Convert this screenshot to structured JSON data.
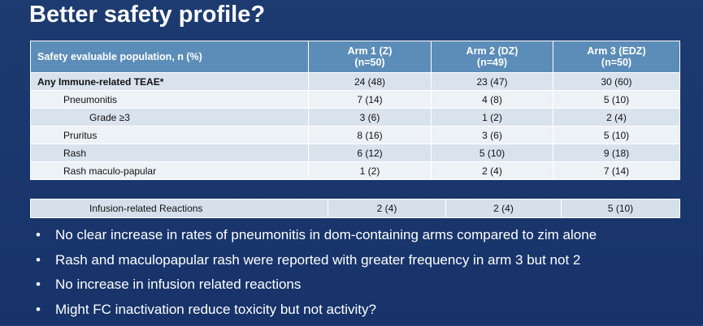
{
  "title": "Better safety profile?",
  "table": {
    "header": [
      "Safety evaluable population, n (%)",
      [
        "Arm 1 (Z)",
        "(n=50)"
      ],
      [
        "Arm 2 (DZ)",
        "(n=49)"
      ],
      [
        "Arm 3 (EDZ)",
        "(n=50)"
      ]
    ],
    "rows": [
      [
        "Any Immune-related TEAE*",
        "24 (48)",
        "23 (47)",
        "30 (60)"
      ],
      [
        "Pneumonitis",
        "7 (14)",
        "4 (8)",
        "5 (10)"
      ],
      [
        "Grade ≥3",
        "3 (6)",
        "1 (2)",
        "2 (4)"
      ],
      [
        "Pruritus",
        "8 (16)",
        "3 (6)",
        "5 (10)"
      ],
      [
        "Rash",
        "6 (12)",
        "5 (10)",
        "9 (18)"
      ],
      [
        "Rash maculo-papular",
        "1 (2)",
        "2 (4)",
        "7 (14)"
      ]
    ]
  },
  "extra_row": [
    "Infusion-related Reactions",
    "2 (4)",
    "2 (4)",
    "5 (10)"
  ],
  "bullets": [
    "No clear increase in rates of pneumonitis in dom-containing arms compared to zim alone",
    "Rash and maculopapular rash were reported with greater frequency in arm 3 but not 2",
    "No increase in infusion related reactions",
    "Might FC inactivation reduce toxicity but not activity?"
  ]
}
